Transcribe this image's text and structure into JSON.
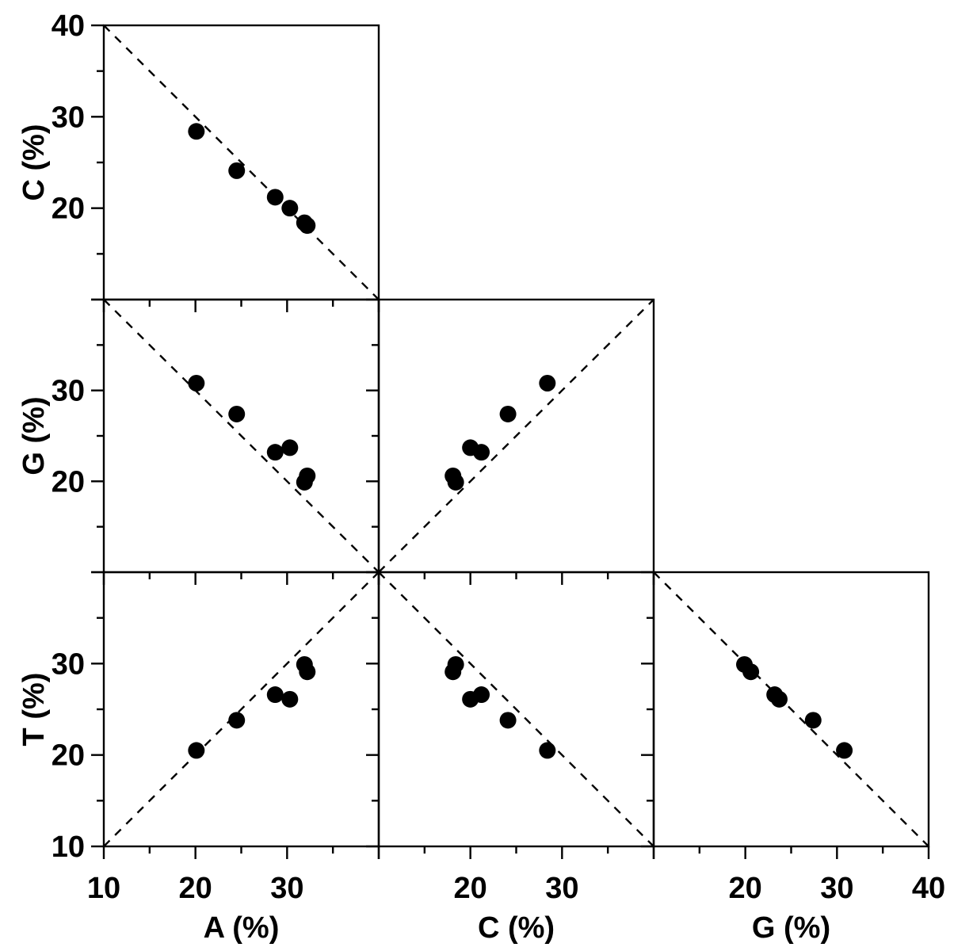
{
  "figure": {
    "background_color": "#ffffff",
    "axis_color": "#000000",
    "marker_color": "#000000",
    "reference_line_style": "dashed"
  },
  "chart_data": {
    "type": "scatter",
    "subtype": "pairs-matrix-lower-triangle",
    "title": "",
    "variables": [
      "A",
      "C",
      "G",
      "T"
    ],
    "axis_min": 10,
    "axis_max": 40,
    "major_ticks": [
      10,
      20,
      30,
      40
    ],
    "minor_ticks": [
      15,
      25,
      35
    ],
    "x_axis_titles": [
      "A (%)",
      "C (%)",
      "G (%)"
    ],
    "y_axis_titles": [
      "C (%)",
      "G (%)",
      "T (%)"
    ],
    "x_tick_labels": [
      [
        10,
        20,
        30
      ],
      [
        20,
        30
      ],
      [
        20,
        30,
        40
      ]
    ],
    "y_tick_labels": [
      [
        40,
        30,
        20
      ],
      [
        30,
        20
      ],
      [
        30,
        20,
        10
      ]
    ],
    "grid": false,
    "legend": false,
    "marker": {
      "shape": "circle",
      "color": "#000000"
    },
    "points": [
      {
        "A": 20.1,
        "C": 28.4,
        "G": 30.8,
        "T": 20.5
      },
      {
        "A": 24.5,
        "C": 24.1,
        "G": 27.4,
        "T": 23.8
      },
      {
        "A": 28.7,
        "C": 21.2,
        "G": 23.2,
        "T": 26.6
      },
      {
        "A": 30.3,
        "C": 20.0,
        "G": 23.7,
        "T": 26.1
      },
      {
        "A": 31.9,
        "C": 18.4,
        "G": 19.9,
        "T": 29.9
      },
      {
        "A": 32.2,
        "C": 18.1,
        "G": 20.6,
        "T": 29.1
      }
    ],
    "panels": [
      {
        "row": 0,
        "col": 0,
        "x": "A",
        "y": "C",
        "diagonal": "anti"
      },
      {
        "row": 1,
        "col": 0,
        "x": "A",
        "y": "G",
        "diagonal": "anti"
      },
      {
        "row": 1,
        "col": 1,
        "x": "C",
        "y": "G",
        "diagonal": "identity"
      },
      {
        "row": 2,
        "col": 0,
        "x": "A",
        "y": "T",
        "diagonal": "identity"
      },
      {
        "row": 2,
        "col": 1,
        "x": "C",
        "y": "T",
        "diagonal": "anti"
      },
      {
        "row": 2,
        "col": 2,
        "x": "G",
        "y": "T",
        "diagonal": "anti"
      }
    ]
  }
}
